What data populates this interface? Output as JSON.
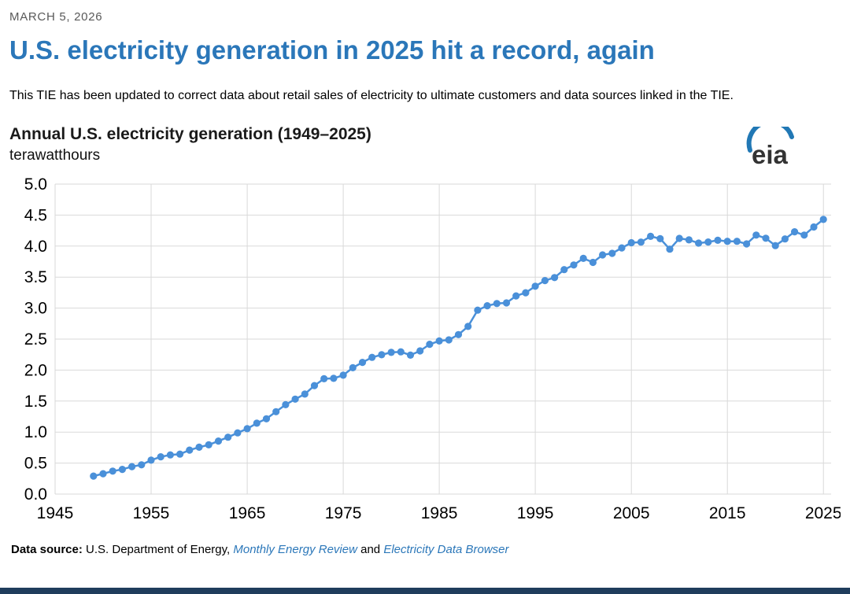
{
  "page": {
    "date": "MARCH 5, 2026",
    "title": "U.S. electricity generation in 2025 hit a record, again",
    "note": "This TIE has been updated to correct data about retail sales of electricity to ultimate customers and data sources linked in the TIE.",
    "accent_color": "#2b77b9"
  },
  "chart": {
    "title": "Annual U.S. electricity generation (1949–2025)",
    "subtitle": "terawatthours"
  },
  "logo": {
    "text": "eia",
    "arc_color": "#2178b5",
    "text_color": "#333333"
  },
  "footer": {
    "label": "Data source:",
    "text_before": " U.S. Department of Energy, ",
    "link1": "Monthly Energy Review",
    "text_middle": " and ",
    "link2": "Electricity Data Browser"
  },
  "chart_data": {
    "type": "line",
    "title": "Annual U.S. electricity generation (1949–2025)",
    "ylabel": "terawatthours",
    "xlabel": "",
    "xlim": [
      1945,
      2025.8
    ],
    "ylim": [
      0,
      5
    ],
    "xticks": [
      1945,
      1955,
      1965,
      1975,
      1985,
      1995,
      2005,
      2015,
      2025
    ],
    "yticks": [
      0,
      0.5,
      1.0,
      1.5,
      2.0,
      2.5,
      3.0,
      3.5,
      4.0,
      4.5,
      5.0
    ],
    "grid": true,
    "gridline_color": "#d9d9d9",
    "marker_color": "#4a90d9",
    "x": [
      1949,
      1950,
      1951,
      1952,
      1953,
      1954,
      1955,
      1956,
      1957,
      1958,
      1959,
      1960,
      1961,
      1962,
      1963,
      1964,
      1965,
      1966,
      1967,
      1968,
      1969,
      1970,
      1971,
      1972,
      1973,
      1974,
      1975,
      1976,
      1977,
      1978,
      1979,
      1980,
      1981,
      1982,
      1983,
      1984,
      1985,
      1986,
      1987,
      1988,
      1989,
      1990,
      1991,
      1992,
      1993,
      1994,
      1995,
      1996,
      1997,
      1998,
      1999,
      2000,
      2001,
      2002,
      2003,
      2004,
      2005,
      2006,
      2007,
      2008,
      2009,
      2010,
      2011,
      2012,
      2013,
      2014,
      2015,
      2016,
      2017,
      2018,
      2019,
      2020,
      2021,
      2022,
      2023,
      2024,
      2025
    ],
    "values": [
      0.291,
      0.329,
      0.371,
      0.399,
      0.443,
      0.472,
      0.547,
      0.601,
      0.632,
      0.645,
      0.71,
      0.756,
      0.794,
      0.855,
      0.917,
      0.987,
      1.055,
      1.144,
      1.214,
      1.329,
      1.442,
      1.532,
      1.613,
      1.75,
      1.861,
      1.867,
      1.918,
      2.038,
      2.124,
      2.206,
      2.247,
      2.286,
      2.295,
      2.241,
      2.31,
      2.416,
      2.47,
      2.487,
      2.572,
      2.704,
      2.967,
      3.038,
      3.074,
      3.084,
      3.197,
      3.248,
      3.353,
      3.444,
      3.492,
      3.62,
      3.695,
      3.802,
      3.737,
      3.858,
      3.883,
      3.971,
      4.055,
      4.065,
      4.157,
      4.119,
      3.95,
      4.125,
      4.1,
      4.048,
      4.066,
      4.094,
      4.078,
      4.077,
      4.035,
      4.178,
      4.127,
      4.007,
      4.116,
      4.231,
      4.178,
      4.308,
      4.43
    ]
  }
}
